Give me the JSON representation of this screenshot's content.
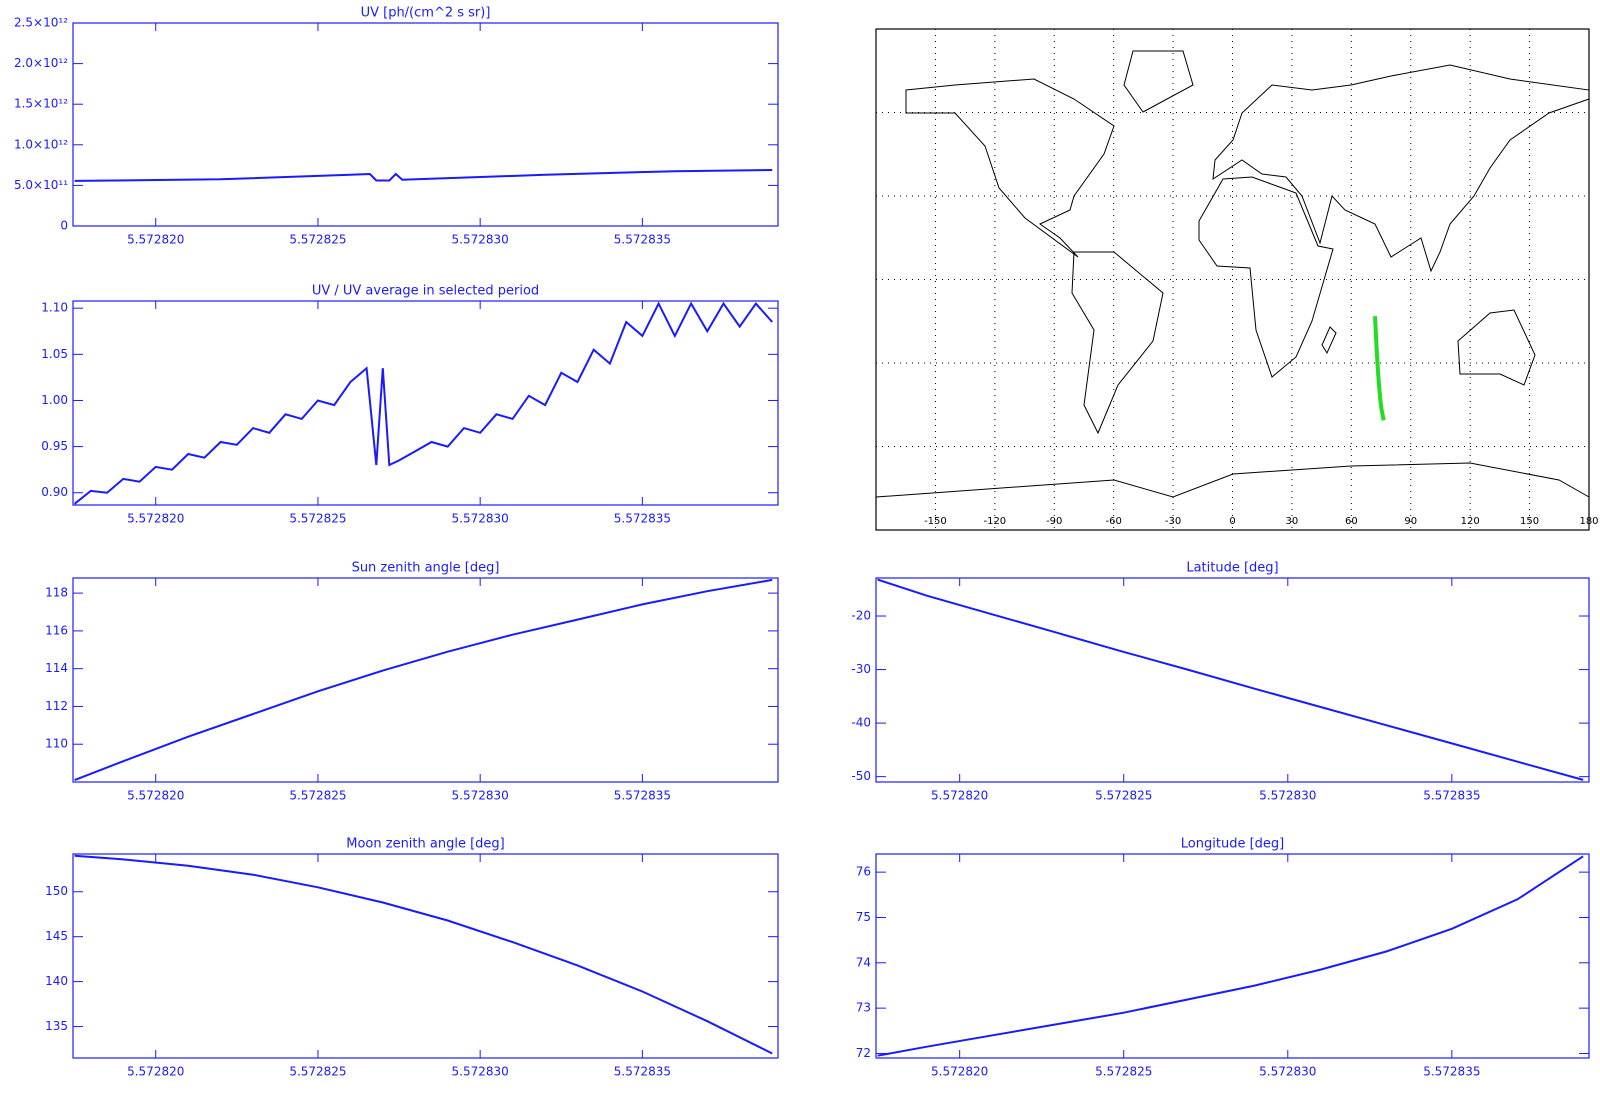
{
  "chart_data": [
    {
      "type": "line",
      "title": "UV [ph/(cm^2 s sr)]",
      "color": "#1a1aff",
      "x": [
        5.5728175,
        5.572822,
        5.572826,
        5.5728266,
        5.5728268,
        5.5728272,
        5.5728274,
        5.5728276,
        5.572832,
        5.572836,
        5.572839
      ],
      "values": [
        556000000000,
        575000000000,
        630000000000,
        640000000000,
        560000000000,
        560000000000,
        640000000000,
        570000000000,
        630000000000,
        675000000000,
        690000000000
      ],
      "xlim": [
        5.57281745,
        5.57283918
      ],
      "ylim": [
        0,
        2500000000000
      ],
      "xticks": [
        {
          "value": 5.57282,
          "label": "5.572820"
        },
        5.572825,
        {
          "value": 5.57283,
          "label": "5.572830"
        },
        5.572835
      ],
      "yticks": [
        0,
        {
          "value": 500000000000,
          "label": "5.0×10¹¹"
        },
        {
          "value": 1000000000000,
          "label": "1.0×10¹²"
        },
        {
          "value": 1500000000000,
          "label": "1.5×10¹²"
        },
        {
          "value": 2000000000000,
          "label": "2.0×10¹²"
        },
        {
          "value": 2500000000000,
          "label": "2.5×10¹²"
        }
      ]
    },
    {
      "type": "line",
      "title": "UV / UV average in selected period",
      "color": "#1a1aff",
      "x": [
        5.5728175,
        5.572818,
        5.5728185,
        5.572819,
        5.5728195,
        5.57282,
        5.5728205,
        5.572821,
        5.5728215,
        5.572822,
        5.5728225,
        5.572823,
        5.5728235,
        5.572824,
        5.5728245,
        5.572825,
        5.5728255,
        5.572826,
        5.5728265,
        5.5728268,
        5.572827,
        5.5728272,
        5.5728275,
        5.572828,
        5.5728285,
        5.572829,
        5.5728295,
        5.57283,
        5.5728305,
        5.572831,
        5.5728315,
        5.572832,
        5.5728325,
        5.572833,
        5.5728335,
        5.572834,
        5.5728345,
        5.572835,
        5.5728355,
        5.572836,
        5.5728365,
        5.572837,
        5.5728375,
        5.572838,
        5.5728385,
        5.572839
      ],
      "values": [
        0.888,
        0.902,
        0.9,
        0.915,
        0.912,
        0.928,
        0.925,
        0.942,
        0.938,
        0.955,
        0.952,
        0.97,
        0.965,
        0.985,
        0.98,
        1.0,
        0.995,
        1.02,
        1.035,
        0.93,
        1.035,
        0.93,
        0.935,
        0.945,
        0.955,
        0.95,
        0.97,
        0.965,
        0.985,
        0.98,
        1.005,
        0.995,
        1.03,
        1.02,
        1.055,
        1.04,
        1.085,
        1.07,
        1.105,
        1.07,
        1.105,
        1.075,
        1.105,
        1.08,
        1.105,
        1.085
      ],
      "xlim": [
        5.57281745,
        5.57283918
      ],
      "ylim": [
        0.8867,
        1.1078
      ],
      "xticks": [
        {
          "value": 5.57282,
          "label": "5.572820"
        },
        5.572825,
        {
          "value": 5.57283,
          "label": "5.572830"
        },
        5.572835
      ],
      "yticks": [
        {
          "value": 0.9,
          "label": "0.90"
        },
        0.95,
        {
          "value": 1.0,
          "label": "1.00"
        },
        1.05,
        {
          "value": 1.1,
          "label": "1.10"
        }
      ]
    },
    {
      "type": "map",
      "color": "#22dd22",
      "x": [
        71.95,
        72.15,
        72.4,
        72.65,
        72.9,
        73.2,
        73.5,
        73.85,
        74.25,
        74.75,
        75.4,
        76.35
      ],
      "values": [
        -13.2,
        -16.2,
        -19.7,
        -23.2,
        -26.7,
        -30.1,
        -33.6,
        -37.0,
        -40.4,
        -43.8,
        -47.2,
        -50.6
      ],
      "xlim": [
        -180,
        180
      ],
      "ylim": [
        -90,
        90
      ],
      "xticks": [
        -150,
        -120,
        -90,
        -60,
        -30,
        0,
        30,
        60,
        90,
        120,
        150,
        180
      ],
      "yticks": [
        -60,
        -30,
        0,
        30,
        60
      ]
    },
    {
      "type": "line",
      "title": "Sun zenith angle [deg]",
      "color": "#1a1aff",
      "x": [
        5.5728175,
        5.572819,
        5.572821,
        5.572823,
        5.572825,
        5.572827,
        5.572829,
        5.572831,
        5.572833,
        5.572835,
        5.572837,
        5.572839
      ],
      "values": [
        108.1,
        109.1,
        110.4,
        111.6,
        112.8,
        113.9,
        114.9,
        115.8,
        116.6,
        117.4,
        118.1,
        118.7
      ],
      "xlim": [
        5.57281745,
        5.57283918
      ],
      "ylim": [
        108.0,
        118.8
      ],
      "xticks": [
        {
          "value": 5.57282,
          "label": "5.572820"
        },
        5.572825,
        {
          "value": 5.57283,
          "label": "5.572830"
        },
        5.572835
      ],
      "yticks": [
        110,
        112,
        114,
        116,
        118
      ]
    },
    {
      "type": "line",
      "title": "Latitude [deg]",
      "color": "#1a1aff",
      "x": [
        5.5728175,
        5.572819,
        5.572821,
        5.572823,
        5.572825,
        5.572827,
        5.572829,
        5.572831,
        5.572833,
        5.572835,
        5.572837,
        5.572839
      ],
      "values": [
        -13.2,
        -16.2,
        -19.7,
        -23.2,
        -26.7,
        -30.1,
        -33.6,
        -37.0,
        -40.4,
        -43.8,
        -47.2,
        -50.6
      ],
      "xlim": [
        5.57281745,
        5.57283918
      ],
      "ylim": [
        -51.0,
        -12.9
      ],
      "xticks": [
        {
          "value": 5.57282,
          "label": "5.572820"
        },
        5.572825,
        {
          "value": 5.57283,
          "label": "5.572830"
        },
        5.572835
      ],
      "yticks": [
        -50,
        -40,
        -30,
        -20
      ]
    },
    {
      "type": "line",
      "title": "Moon zenith angle [deg]",
      "color": "#1a1aff",
      "x": [
        5.5728175,
        5.572819,
        5.572821,
        5.572823,
        5.572825,
        5.572827,
        5.572829,
        5.572831,
        5.572833,
        5.572835,
        5.572837,
        5.572839
      ],
      "values": [
        154.0,
        153.6,
        152.9,
        151.9,
        150.5,
        148.8,
        146.8,
        144.4,
        141.8,
        138.9,
        135.6,
        132.0
      ],
      "xlim": [
        5.57281745,
        5.57283918
      ],
      "ylim": [
        131.5,
        154.2
      ],
      "xticks": [
        {
          "value": 5.57282,
          "label": "5.572820"
        },
        5.572825,
        {
          "value": 5.57283,
          "label": "5.572830"
        },
        5.572835
      ],
      "yticks": [
        135,
        140,
        145,
        150
      ]
    },
    {
      "type": "line",
      "title": "Longitude [deg]",
      "color": "#1a1aff",
      "x": [
        5.5728175,
        5.572819,
        5.572821,
        5.572823,
        5.572825,
        5.572827,
        5.572829,
        5.572831,
        5.572833,
        5.572835,
        5.572837,
        5.572839
      ],
      "values": [
        71.95,
        72.15,
        72.4,
        72.65,
        72.9,
        73.2,
        73.5,
        73.85,
        74.25,
        74.75,
        75.4,
        76.35
      ],
      "xlim": [
        5.57281745,
        5.57283918
      ],
      "ylim": [
        71.9,
        76.4
      ],
      "xticks": [
        {
          "value": 5.57282,
          "label": "5.572820"
        },
        5.572825,
        {
          "value": 5.57283,
          "label": "5.572830"
        },
        5.572835
      ],
      "yticks": [
        72,
        73,
        74,
        75,
        76
      ]
    }
  ]
}
